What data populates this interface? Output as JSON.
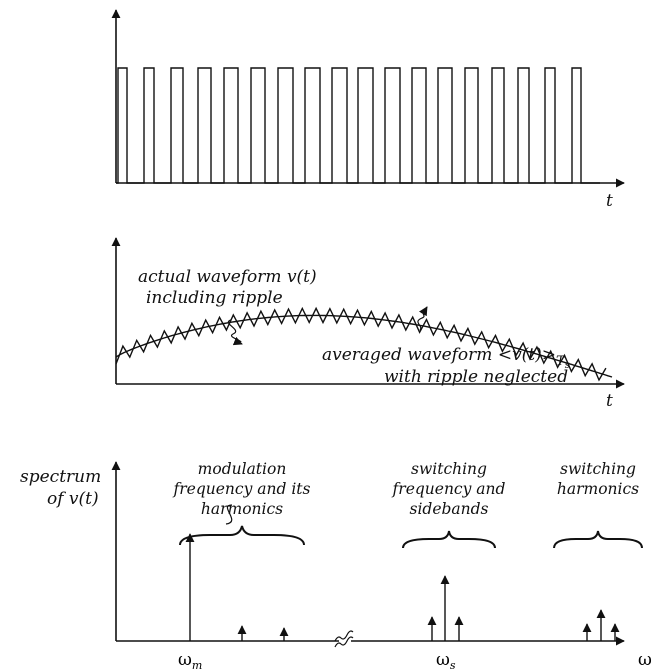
{
  "panel1": {
    "x_axis_label": "t"
  },
  "panel2": {
    "x_axis_label": "t",
    "actual_label_line1": "actual waveform v(t)",
    "actual_label_line2": "including ripple",
    "averaged_label_line1": "averaged waveform <v(t)>",
    "averaged_label_subscript": "T",
    "averaged_label_subsubscript": "s",
    "averaged_label_line2": "with ripple neglected"
  },
  "panel3": {
    "y_label_line1": "spectrum",
    "y_label_line2": "of v(t)",
    "x_axis_label": "ω",
    "omega_m_symbol": "ω",
    "omega_m_sub": "m",
    "omega_s_symbol": "ω",
    "omega_s_sub": "s",
    "axis_break_symbol": "≈",
    "group1_line1": "modulation",
    "group1_line2": "frequency and its",
    "group1_line3": "harmonics",
    "group2_line1": "switching",
    "group2_line2": "frequency and",
    "group2_line3": "sidebands",
    "group3_line1": "switching",
    "group3_line2": "harmonics"
  }
}
